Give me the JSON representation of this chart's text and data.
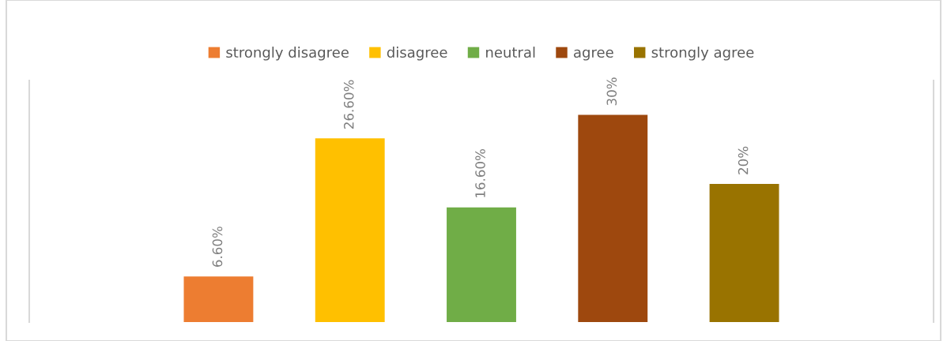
{
  "chart_data": {
    "type": "bar",
    "categories": [
      null,
      null,
      null,
      null,
      null
    ],
    "stacked": true,
    "grid": false,
    "legend": "top",
    "series": [
      {
        "name": "strongly disagree",
        "color": "#ed7d31",
        "values": [
          6.6,
          null,
          null,
          null,
          null
        ],
        "value_labels": [
          "6.60%",
          null,
          null,
          null,
          null
        ]
      },
      {
        "name": "disagree",
        "color": "#ffc000",
        "values": [
          null,
          26.6,
          null,
          null,
          null
        ],
        "value_labels": [
          null,
          "26.60%",
          null,
          null,
          null
        ]
      },
      {
        "name": "neutral",
        "color": "#70ad47",
        "values": [
          null,
          null,
          16.6,
          null,
          null
        ],
        "value_labels": [
          null,
          null,
          "16.60%",
          null,
          null
        ]
      },
      {
        "name": "agree",
        "color": "#9e480e",
        "values": [
          null,
          null,
          null,
          30,
          null
        ],
        "value_labels": [
          null,
          null,
          null,
          "30%",
          null
        ]
      },
      {
        "name": "strongly agree",
        "color": "#997300",
        "values": [
          null,
          null,
          null,
          null,
          20
        ],
        "value_labels": [
          null,
          null,
          null,
          null,
          "20%"
        ]
      }
    ]
  }
}
